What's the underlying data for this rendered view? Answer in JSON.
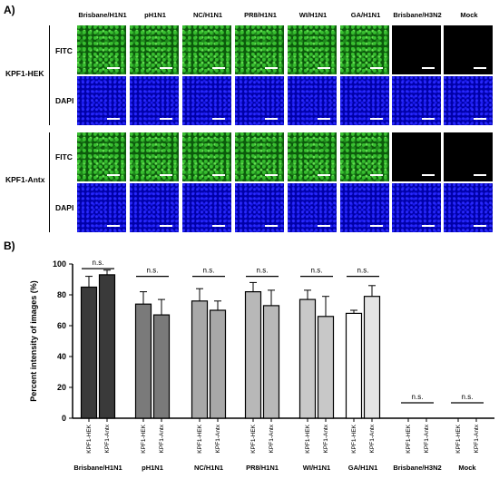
{
  "panel_a": {
    "label": "A)",
    "columns": [
      "Brisbane/H1N1",
      "pH1N1",
      "NC/H1N1",
      "PR8/H1N1",
      "WI/H1N1",
      "GA/H1N1",
      "Brisbane/H3N2",
      "Mock"
    ],
    "groups": [
      {
        "name": "KPF1-HEK",
        "rows": [
          "FITC",
          "DAPI"
        ]
      },
      {
        "name": "KPF1-Antx",
        "rows": [
          "FITC",
          "DAPI"
        ]
      }
    ],
    "tile_colors": {
      "green_bright": "#38c030",
      "green_dark": "#0c5a0c",
      "blue_bright": "#2a2aff",
      "blue_dark": "#0000a8",
      "black": "#000000"
    },
    "positive_columns": 6
  },
  "panel_b": {
    "label": "B)"
  },
  "chart_data": {
    "type": "bar",
    "ylabel": "Percent intensity of images (%)",
    "ylim": [
      0,
      100
    ],
    "yticks": [
      "0",
      "20",
      "40",
      "60",
      "80",
      "100"
    ],
    "groups": [
      "Brisbane/H1N1",
      "pH1N1",
      "NC/H1N1",
      "PR8/H1N1",
      "WI/H1N1",
      "GA/H1N1",
      "Brisbane/H3N2",
      "Mock"
    ],
    "bar_labels": [
      "KPF1-HEK",
      "KPF1-Antx"
    ],
    "bars": [
      {
        "group": "Brisbane/H1N1",
        "label": "KPF1-HEK",
        "value": 85,
        "error": 7,
        "color": "#3a3a3a"
      },
      {
        "group": "Brisbane/H1N1",
        "label": "KPF1-Antx",
        "value": 93,
        "error": 3,
        "color": "#3a3a3a"
      },
      {
        "group": "pH1N1",
        "label": "KPF1-HEK",
        "value": 74,
        "error": 8,
        "color": "#7a7a7a"
      },
      {
        "group": "pH1N1",
        "label": "KPF1-Antx",
        "value": 67,
        "error": 10,
        "color": "#7a7a7a"
      },
      {
        "group": "NC/H1N1",
        "label": "KPF1-HEK",
        "value": 76,
        "error": 8,
        "color": "#a8a8a8"
      },
      {
        "group": "NC/H1N1",
        "label": "KPF1-Antx",
        "value": 70,
        "error": 6,
        "color": "#a8a8a8"
      },
      {
        "group": "PR8/H1N1",
        "label": "KPF1-HEK",
        "value": 82,
        "error": 6,
        "color": "#b8b8b8"
      },
      {
        "group": "PR8/H1N1",
        "label": "KPF1-Antx",
        "value": 73,
        "error": 10,
        "color": "#b8b8b8"
      },
      {
        "group": "WI/H1N1",
        "label": "KPF1-HEK",
        "value": 77,
        "error": 6,
        "color": "#c8c8c8"
      },
      {
        "group": "WI/H1N1",
        "label": "KPF1-Antx",
        "value": 66,
        "error": 13,
        "color": "#c8c8c8"
      },
      {
        "group": "GA/H1N1",
        "label": "KPF1-HEK",
        "value": 68,
        "error": 2,
        "color": "#ffffff"
      },
      {
        "group": "GA/H1N1",
        "label": "KPF1-Antx",
        "value": 79,
        "error": 7,
        "color": "#e4e4e4"
      },
      {
        "group": "Brisbane/H3N2",
        "label": "KPF1-HEK",
        "value": 0,
        "error": 0,
        "color": "#ffffff"
      },
      {
        "group": "Brisbane/H3N2",
        "label": "KPF1-Antx",
        "value": 0,
        "error": 0,
        "color": "#ffffff"
      },
      {
        "group": "Mock",
        "label": "KPF1-HEK",
        "value": 0,
        "error": 0,
        "color": "#ffffff"
      },
      {
        "group": "Mock",
        "label": "KPF1-Antx",
        "value": 0,
        "error": 0,
        "color": "#ffffff"
      }
    ],
    "significance": [
      {
        "group": "Brisbane/H1N1",
        "text": "n.s.",
        "y": 97
      },
      {
        "group": "pH1N1",
        "text": "n.s.",
        "y": 92
      },
      {
        "group": "NC/H1N1",
        "text": "n.s.",
        "y": 92
      },
      {
        "group": "PR8/H1N1",
        "text": "n.s.",
        "y": 92
      },
      {
        "group": "WI/H1N1",
        "text": "n.s.",
        "y": 92
      },
      {
        "group": "GA/H1N1",
        "text": "n.s.",
        "y": 92
      },
      {
        "group": "Brisbane/H3N2",
        "text": "n.s.",
        "y": 10
      },
      {
        "group": "Mock",
        "text": "n.s.",
        "y": 10
      }
    ]
  }
}
